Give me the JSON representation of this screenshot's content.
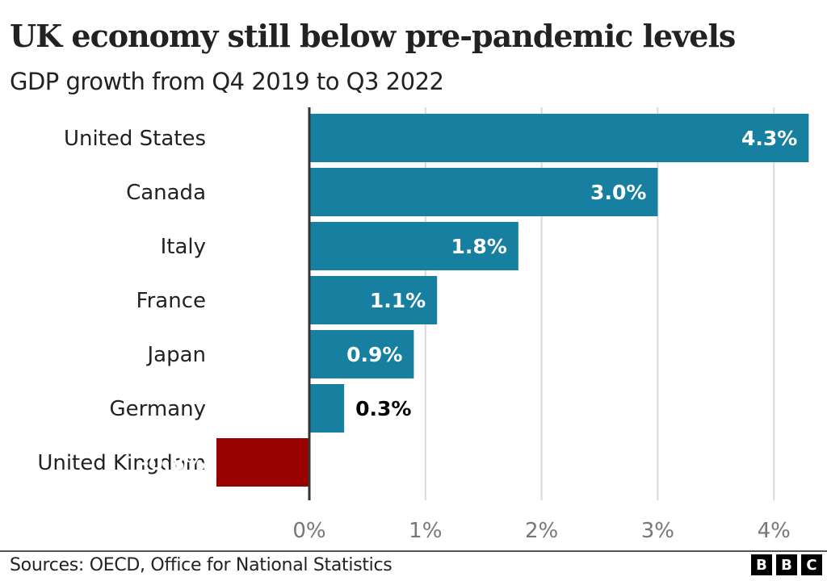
{
  "chart_data": {
    "type": "bar",
    "orientation": "horizontal",
    "title": "UK economy still below pre-pandemic levels",
    "subtitle": "GDP growth from Q4 2019 to Q3 2022",
    "categories": [
      "United States",
      "Canada",
      "Italy",
      "France",
      "Japan",
      "Germany",
      "United Kingdom"
    ],
    "values": [
      4.3,
      3.0,
      1.8,
      1.1,
      0.9,
      0.3,
      -0.8
    ],
    "value_labels": [
      "4.3%",
      "3.0%",
      "1.8%",
      "1.1%",
      "0.9%",
      "0.3%",
      "-0.8%"
    ],
    "bar_colors": [
      "#1780a1",
      "#1780a1",
      "#1780a1",
      "#1780a1",
      "#1780a1",
      "#1780a1",
      "#990000"
    ],
    "xlabel": "",
    "ylabel": "",
    "xlim": [
      -0.8,
      4.3
    ],
    "x_ticks": [
      0,
      1,
      2,
      3,
      4
    ],
    "x_tick_labels": [
      "0%",
      "1%",
      "2%",
      "3%",
      "4%"
    ],
    "grid": true,
    "legend": "none"
  },
  "footer": {
    "source": "Sources: OECD, Office for National Statistics",
    "logo_letters": [
      "B",
      "B",
      "C"
    ]
  },
  "colors": {
    "positive_bar": "#1780a1",
    "negative_bar": "#990000",
    "grid": "#d9d9d9",
    "axis": "#333333"
  }
}
